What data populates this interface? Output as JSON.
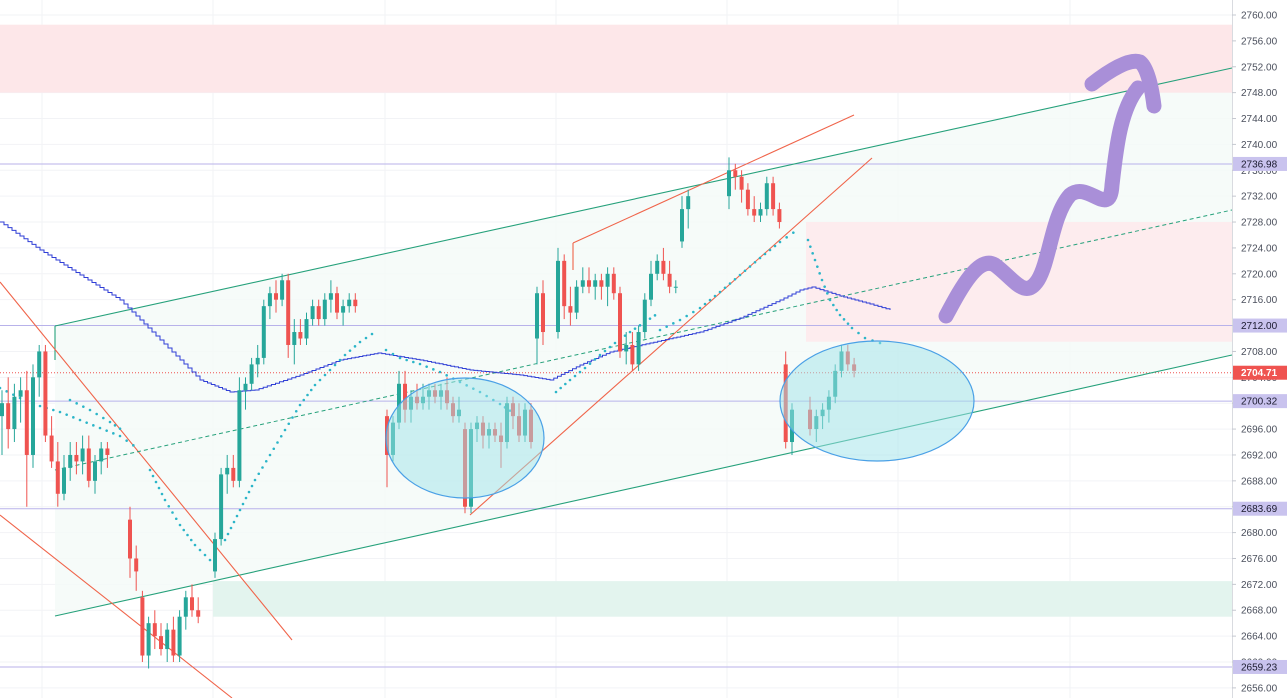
{
  "chart_data": {
    "type": "candlestick",
    "y_axis": {
      "position": "right",
      "ylim": [
        2654.5,
        2761.5
      ],
      "ticks": [
        "2760.00",
        "2756.00",
        "2752.00",
        "2748.00",
        "2744.00",
        "2740.00",
        "2736.00",
        "2732.00",
        "2728.00",
        "2724.00",
        "2720.00",
        "2716.00",
        "2712.00",
        "2708.00",
        "2704.00",
        "2700.00",
        "2696.00",
        "2692.00",
        "2688.00",
        "2684.00",
        "2680.00",
        "2676.00",
        "2672.00",
        "2668.00",
        "2664.00",
        "2660.00",
        "2656.00"
      ]
    },
    "grid": true,
    "price_labels": [
      {
        "value": 2736.98,
        "text": "2736.98",
        "color": "#c9c3ee",
        "text_color": "#1a1a2e"
      },
      {
        "value": 2712.0,
        "text": "2712.00",
        "color": "#c9c3ee",
        "text_color": "#1a1a2e"
      },
      {
        "value": 2704.71,
        "text": "2704.71",
        "color": "#ef5350",
        "text_color": "#ffffff"
      },
      {
        "value": 2700.32,
        "text": "2700.32",
        "color": "#c9c3ee",
        "text_color": "#1a1a2e"
      },
      {
        "value": 2683.69,
        "text": "2683.69",
        "color": "#c9c3ee",
        "text_color": "#1a1a2e"
      },
      {
        "value": 2659.23,
        "text": "2659.23",
        "color": "#c9c3ee",
        "text_color": "#1a1a2e"
      }
    ],
    "zones": [
      {
        "kind": "supply",
        "y1": 2758.5,
        "y2": 2748.0,
        "color": "#fde7e9"
      },
      {
        "kind": "supply",
        "y1": 2728.0,
        "y2": 2709.5,
        "color": "#fdecee"
      },
      {
        "kind": "demand",
        "y1": 2672.5,
        "y2": 2667.0,
        "color": "#e3f4ee"
      }
    ],
    "colors": {
      "up": "#26a69a",
      "down": "#ef5350",
      "channel": "#26a17b",
      "trendline": "#f0644a",
      "forecast_arrow": "#a98fd8",
      "highlight": "#9fe4ea",
      "ma": "#2f3ed6"
    },
    "candles": [
      {
        "o": 2698,
        "h": 2702,
        "l": 2692,
        "c": 2700
      },
      {
        "o": 2700,
        "h": 2704,
        "l": 2693,
        "c": 2696
      },
      {
        "o": 2696,
        "h": 2703,
        "l": 2694,
        "c": 2701
      },
      {
        "o": 2701,
        "h": 2704,
        "l": 2697,
        "c": 2702
      },
      {
        "o": 2702,
        "h": 2705,
        "l": 2684,
        "c": 2692
      },
      {
        "o": 2692,
        "h": 2706,
        "l": 2690,
        "c": 2704
      },
      {
        "o": 2704,
        "h": 2709,
        "l": 2701,
        "c": 2708
      },
      {
        "o": 2708,
        "h": 2709,
        "l": 2694,
        "c": 2695
      },
      {
        "o": 2695,
        "h": 2698,
        "l": 2690,
        "c": 2691
      },
      {
        "o": 2691,
        "h": 2694,
        "l": 2684,
        "c": 2686
      },
      {
        "o": 2686,
        "h": 2692,
        "l": 2685,
        "c": 2690
      },
      {
        "o": 2690,
        "h": 2694,
        "l": 2688,
        "c": 2692
      },
      {
        "o": 2692,
        "h": 2694,
        "l": 2689,
        "c": 2691
      },
      {
        "o": 2691,
        "h": 2695,
        "l": 2689,
        "c": 2693
      },
      {
        "o": 2693,
        "h": 2695,
        "l": 2687,
        "c": 2688
      },
      {
        "o": 2688,
        "h": 2692,
        "l": 2686,
        "c": 2691
      },
      {
        "o": 2691,
        "h": 2694,
        "l": 2689,
        "c": 2693
      },
      {
        "o": 2693,
        "h": 2694,
        "l": 2690,
        "c": 2692
      },
      {
        "o": 2682,
        "h": 2684,
        "l": 2673,
        "c": 2676
      },
      {
        "o": 2676,
        "h": 2678,
        "l": 2671,
        "c": 2674
      },
      {
        "o": 2670,
        "h": 2671,
        "l": 2660,
        "c": 2661
      },
      {
        "o": 2661,
        "h": 2667,
        "l": 2659,
        "c": 2666
      },
      {
        "o": 2666,
        "h": 2668,
        "l": 2662,
        "c": 2664
      },
      {
        "o": 2664,
        "h": 2666,
        "l": 2661,
        "c": 2662
      },
      {
        "o": 2662,
        "h": 2666,
        "l": 2660,
        "c": 2665
      },
      {
        "o": 2665,
        "h": 2667,
        "l": 2660,
        "c": 2661
      },
      {
        "o": 2661,
        "h": 2668,
        "l": 2660,
        "c": 2667
      },
      {
        "o": 2667,
        "h": 2671,
        "l": 2665,
        "c": 2670
      },
      {
        "o": 2670,
        "h": 2672,
        "l": 2667,
        "c": 2668
      },
      {
        "o": 2668,
        "h": 2670,
        "l": 2666,
        "c": 2667
      },
      {
        "o": 2674,
        "h": 2680,
        "l": 2673,
        "c": 2679
      },
      {
        "o": 2679,
        "h": 2690,
        "l": 2678,
        "c": 2689
      },
      {
        "o": 2689,
        "h": 2692,
        "l": 2686,
        "c": 2690
      },
      {
        "o": 2690,
        "h": 2692,
        "l": 2687,
        "c": 2688
      },
      {
        "o": 2688,
        "h": 2704,
        "l": 2687,
        "c": 2702
      },
      {
        "o": 2702,
        "h": 2704,
        "l": 2699,
        "c": 2703
      },
      {
        "o": 2703,
        "h": 2707,
        "l": 2702,
        "c": 2706
      },
      {
        "o": 2706,
        "h": 2709,
        "l": 2704,
        "c": 2707
      },
      {
        "o": 2707,
        "h": 2716,
        "l": 2706,
        "c": 2715
      },
      {
        "o": 2715,
        "h": 2718,
        "l": 2713,
        "c": 2717
      },
      {
        "o": 2717,
        "h": 2719,
        "l": 2714,
        "c": 2716
      },
      {
        "o": 2716,
        "h": 2720,
        "l": 2715,
        "c": 2719
      },
      {
        "o": 2719,
        "h": 2720,
        "l": 2707,
        "c": 2709
      },
      {
        "o": 2709,
        "h": 2713,
        "l": 2706,
        "c": 2711
      },
      {
        "o": 2711,
        "h": 2713,
        "l": 2709,
        "c": 2710
      },
      {
        "o": 2710,
        "h": 2714,
        "l": 2709,
        "c": 2713
      },
      {
        "o": 2713,
        "h": 2716,
        "l": 2712,
        "c": 2715
      },
      {
        "o": 2715,
        "h": 2716,
        "l": 2712,
        "c": 2713
      },
      {
        "o": 2713,
        "h": 2717,
        "l": 2712,
        "c": 2716
      },
      {
        "o": 2716,
        "h": 2719,
        "l": 2714,
        "c": 2717
      },
      {
        "o": 2717,
        "h": 2718,
        "l": 2713,
        "c": 2714
      },
      {
        "o": 2714,
        "h": 2716,
        "l": 2712,
        "c": 2715
      },
      {
        "o": 2715,
        "h": 2717,
        "l": 2714,
        "c": 2716
      },
      {
        "o": 2716,
        "h": 2717,
        "l": 2714,
        "c": 2715
      },
      {
        "o": 2698,
        "h": 2699,
        "l": 2687,
        "c": 2692
      },
      {
        "o": 2692,
        "h": 2698,
        "l": 2691,
        "c": 2697
      },
      {
        "o": 2697,
        "h": 2705,
        "l": 2696,
        "c": 2703
      },
      {
        "o": 2703,
        "h": 2705,
        "l": 2697,
        "c": 2699
      },
      {
        "o": 2699,
        "h": 2702,
        "l": 2697,
        "c": 2701
      },
      {
        "o": 2701,
        "h": 2703,
        "l": 2699,
        "c": 2700
      },
      {
        "o": 2700,
        "h": 2703,
        "l": 2699,
        "c": 2701
      },
      {
        "o": 2701,
        "h": 2703,
        "l": 2699,
        "c": 2702
      },
      {
        "o": 2702,
        "h": 2703,
        "l": 2700,
        "c": 2701
      },
      {
        "o": 2701,
        "h": 2703,
        "l": 2699,
        "c": 2702
      },
      {
        "o": 2702,
        "h": 2704,
        "l": 2699,
        "c": 2700
      },
      {
        "o": 2700,
        "h": 2701,
        "l": 2697,
        "c": 2698
      },
      {
        "o": 2698,
        "h": 2701,
        "l": 2697,
        "c": 2699
      },
      {
        "o": 2696,
        "h": 2697,
        "l": 2683,
        "c": 2684
      },
      {
        "o": 2684,
        "h": 2697,
        "l": 2683,
        "c": 2696
      },
      {
        "o": 2696,
        "h": 2698,
        "l": 2694,
        "c": 2697
      },
      {
        "o": 2697,
        "h": 2698,
        "l": 2693,
        "c": 2695
      },
      {
        "o": 2695,
        "h": 2697,
        "l": 2693,
        "c": 2696
      },
      {
        "o": 2696,
        "h": 2697,
        "l": 2694,
        "c": 2695
      },
      {
        "o": 2695,
        "h": 2697,
        "l": 2690,
        "c": 2694
      },
      {
        "o": 2694,
        "h": 2701,
        "l": 2693,
        "c": 2700
      },
      {
        "o": 2700,
        "h": 2701,
        "l": 2696,
        "c": 2698
      },
      {
        "o": 2698,
        "h": 2700,
        "l": 2694,
        "c": 2695
      },
      {
        "o": 2695,
        "h": 2700,
        "l": 2694,
        "c": 2699
      },
      {
        "o": 2699,
        "h": 2700,
        "l": 2693,
        "c": 2694
      },
      {
        "o": 2710,
        "h": 2718,
        "l": 2706,
        "c": 2717
      },
      {
        "o": 2717,
        "h": 2719,
        "l": 2709,
        "c": 2711
      },
      {
        "o": 2711,
        "h": 2724,
        "l": 2710,
        "c": 2722
      },
      {
        "o": 2722,
        "h": 2723,
        "l": 2713,
        "c": 2715
      },
      {
        "o": 2715,
        "h": 2718,
        "l": 2712,
        "c": 2714
      },
      {
        "o": 2714,
        "h": 2719,
        "l": 2713,
        "c": 2718
      },
      {
        "o": 2718,
        "h": 2721,
        "l": 2717,
        "c": 2719
      },
      {
        "o": 2719,
        "h": 2721,
        "l": 2717,
        "c": 2718
      },
      {
        "o": 2718,
        "h": 2720,
        "l": 2716,
        "c": 2719
      },
      {
        "o": 2719,
        "h": 2720,
        "l": 2716,
        "c": 2718
      },
      {
        "o": 2718,
        "h": 2721,
        "l": 2715,
        "c": 2720
      },
      {
        "o": 2720,
        "h": 2721,
        "l": 2716,
        "c": 2717
      },
      {
        "o": 2717,
        "h": 2718,
        "l": 2707,
        "c": 2708
      },
      {
        "o": 2708,
        "h": 2711,
        "l": 2706,
        "c": 2709
      },
      {
        "o": 2709,
        "h": 2711,
        "l": 2705,
        "c": 2706
      },
      {
        "o": 2706,
        "h": 2712,
        "l": 2705,
        "c": 2711
      },
      {
        "o": 2711,
        "h": 2717,
        "l": 2710,
        "c": 2716
      },
      {
        "o": 2716,
        "h": 2722,
        "l": 2715,
        "c": 2720
      },
      {
        "o": 2720,
        "h": 2723,
        "l": 2719,
        "c": 2722
      },
      {
        "o": 2722,
        "h": 2724,
        "l": 2719,
        "c": 2720
      },
      {
        "o": 2720,
        "h": 2722,
        "l": 2717,
        "c": 2718
      },
      {
        "o": 2718,
        "h": 2719,
        "l": 2717,
        "c": 2718
      },
      {
        "o": 2725,
        "h": 2732,
        "l": 2724,
        "c": 2730
      },
      {
        "o": 2730,
        "h": 2733,
        "l": 2727,
        "c": 2732
      },
      {
        "o": 2732,
        "h": 2738,
        "l": 2730,
        "c": 2736
      },
      {
        "o": 2736,
        "h": 2737,
        "l": 2733,
        "c": 2735
      },
      {
        "o": 2735,
        "h": 2736,
        "l": 2731,
        "c": 2733
      },
      {
        "o": 2733,
        "h": 2734,
        "l": 2729,
        "c": 2730
      },
      {
        "o": 2730,
        "h": 2732,
        "l": 2728,
        "c": 2729
      },
      {
        "o": 2729,
        "h": 2731,
        "l": 2728,
        "c": 2730
      },
      {
        "o": 2730,
        "h": 2735,
        "l": 2729,
        "c": 2734
      },
      {
        "o": 2734,
        "h": 2735,
        "l": 2729,
        "c": 2730
      },
      {
        "o": 2730,
        "h": 2731,
        "l": 2727,
        "c": 2728
      },
      {
        "o": 2706,
        "h": 2708,
        "l": 2693,
        "c": 2694
      },
      {
        "o": 2694,
        "h": 2700,
        "l": 2692,
        "c": 2699
      },
      {
        "o": 2699,
        "h": 2701,
        "l": 2695,
        "c": 2696
      },
      {
        "o": 2696,
        "h": 2699,
        "l": 2694,
        "c": 2698
      },
      {
        "o": 2698,
        "h": 2700,
        "l": 2696,
        "c": 2699
      },
      {
        "o": 2699,
        "h": 2702,
        "l": 2697,
        "c": 2701
      },
      {
        "o": 2701,
        "h": 2706,
        "l": 2700,
        "c": 2705
      },
      {
        "o": 2705,
        "h": 2709,
        "l": 2704,
        "c": 2708
      },
      {
        "o": 2708,
        "h": 2709,
        "l": 2705,
        "c": 2706
      },
      {
        "o": 2706,
        "h": 2707,
        "l": 2704,
        "c": 2705
      }
    ]
  }
}
